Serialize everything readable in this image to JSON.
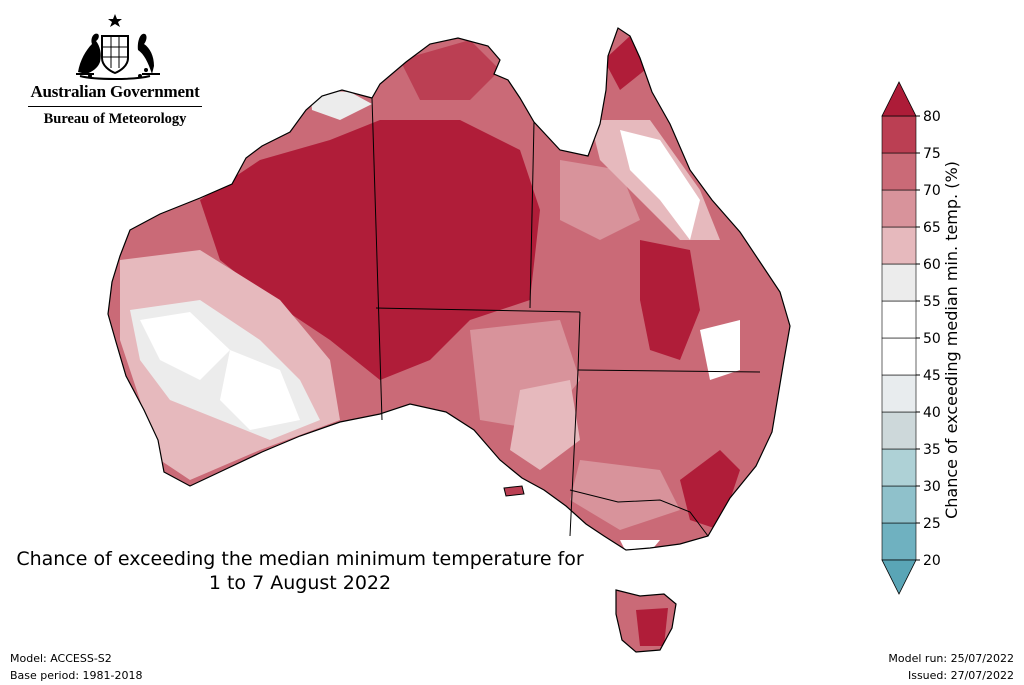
{
  "header": {
    "government_name": "Australian Government",
    "bureau_name": "Bureau of Meteorology",
    "crest_icon": "commonwealth-coat-of-arms-icon"
  },
  "title": {
    "line1": "Chance of exceeding the median minimum temperature for",
    "line2": "1 to 7 August 2022"
  },
  "footer": {
    "model": "Model: ACCESS-S2",
    "base_period": "Base period: 1981-2018",
    "model_run": "Model run: 25/07/2022",
    "issued": "Issued: 27/07/2022"
  },
  "colorbar": {
    "label": "Chance of exceeding median min. temp. (%)",
    "ticks": [
      "20",
      "25",
      "30",
      "35",
      "40",
      "45",
      "50",
      "55",
      "60",
      "65",
      "70",
      "75",
      "80"
    ],
    "bands": [
      {
        "from": 20,
        "to": 25,
        "color": "#6fb1c0"
      },
      {
        "from": 25,
        "to": 30,
        "color": "#8fc1cb"
      },
      {
        "from": 30,
        "to": 35,
        "color": "#aed1d6"
      },
      {
        "from": 35,
        "to": 40,
        "color": "#cdd8da"
      },
      {
        "from": 40,
        "to": 45,
        "color": "#e8ecee"
      },
      {
        "from": 45,
        "to": 50,
        "color": "#ffffff"
      },
      {
        "from": 50,
        "to": 55,
        "color": "#ffffff"
      },
      {
        "from": 55,
        "to": 60,
        "color": "#ececec"
      },
      {
        "from": 60,
        "to": 65,
        "color": "#e6b9bd"
      },
      {
        "from": 65,
        "to": 70,
        "color": "#d8939b"
      },
      {
        "from": 70,
        "to": 75,
        "color": "#ca6a77"
      },
      {
        "from": 75,
        "to": 80,
        "color": "#bb3f53"
      }
    ],
    "under_color": "#5aa5b6",
    "over_color": "#ad1c38"
  }
}
